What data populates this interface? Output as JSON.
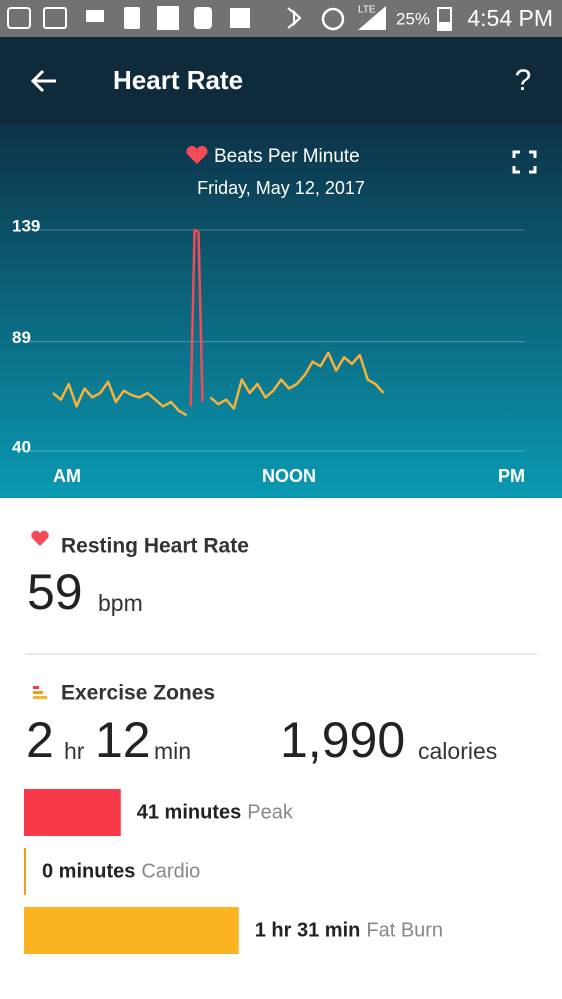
{
  "status_bar": {
    "network": "LTE",
    "battery": "25%",
    "time": "4:54 PM"
  },
  "header": {
    "title": "Heart Rate",
    "help": "?"
  },
  "chart_data": {
    "type": "line",
    "legend": "Beats Per Minute",
    "subtitle": "Friday, May 12, 2017",
    "x": [
      0,
      0.4,
      0.8,
      1.2,
      1.6,
      2.0,
      2.4,
      2.8,
      3.2,
      3.6,
      4.0,
      4.4,
      4.8,
      5.2,
      5.6,
      6.0,
      6.4,
      6.8,
      7.0,
      7.2,
      7.4,
      7.6,
      8.0,
      8.4,
      8.8,
      9.2,
      9.6,
      10.0,
      10.4,
      10.8,
      11.2,
      11.6,
      12.0,
      12.4,
      12.8,
      13.2,
      13.6,
      14.0,
      14.4,
      14.8,
      15.2,
      15.6,
      16.0,
      16.4,
      16.8
    ],
    "series": [
      {
        "color": "#f7b23b",
        "values": [
          66,
          63,
          70,
          60,
          68,
          64,
          66,
          71,
          62,
          67,
          65,
          64,
          66,
          63,
          60,
          62,
          58,
          56,
          null,
          null,
          null,
          null,
          64,
          61,
          63,
          59,
          72,
          66,
          70,
          64,
          67,
          72,
          68,
          70,
          74,
          80,
          78,
          84,
          76,
          82,
          79,
          83,
          72,
          70,
          66
        ]
      },
      {
        "color": "#f34b57",
        "values": [
          null,
          null,
          null,
          null,
          null,
          null,
          null,
          null,
          null,
          null,
          null,
          null,
          null,
          null,
          null,
          null,
          null,
          null,
          60,
          139,
          138,
          62,
          null,
          null,
          null,
          null,
          null,
          null,
          null,
          null,
          null,
          null,
          null,
          null,
          null,
          null,
          null,
          null,
          null,
          null,
          null,
          null,
          null,
          null,
          null
        ]
      }
    ],
    "xlim": [
      0,
      24
    ],
    "xticks": [
      {
        "value": 0,
        "label": "AM"
      },
      {
        "value": 12,
        "label": "NOON"
      },
      {
        "value": 24,
        "label": "PM"
      }
    ],
    "ylim": [
      40,
      139
    ],
    "yticks": [
      40,
      89,
      139
    ],
    "grid": true
  },
  "resting": {
    "label": "Resting Heart Rate",
    "value": "59",
    "unit": "bpm"
  },
  "exercise": {
    "label": "Exercise Zones",
    "hours": "2",
    "hours_unit": "hr",
    "minutes": "12",
    "minutes_unit": "min",
    "calories": "1,990",
    "calories_unit": "calories",
    "zones": [
      {
        "minutes": 41,
        "label": "41 minutes",
        "name": "Peak",
        "color": "#f7394a"
      },
      {
        "minutes": 0,
        "label": "0 minutes",
        "name": "Cardio",
        "color": "#f29c1e"
      },
      {
        "minutes": 91,
        "label": "1 hr 31 min",
        "name": "Fat Burn",
        "color": "#fbb321"
      }
    ]
  }
}
